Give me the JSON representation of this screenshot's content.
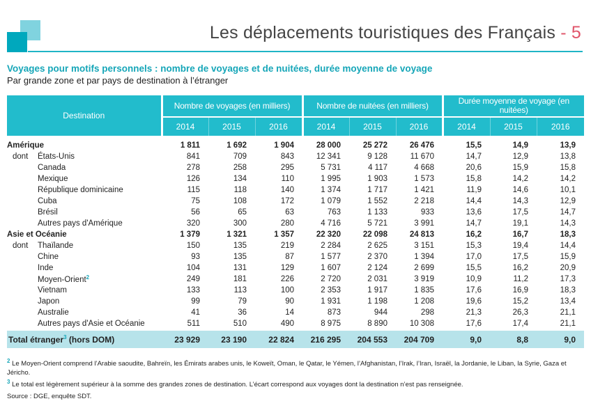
{
  "header": {
    "title": "Les déplacements touristiques des Français",
    "page_sep": "-",
    "page": "5"
  },
  "subtitle": "Voyages pour motifs personnels : nombre de voyages et de nuitées, durée moyenne de voyage",
  "subsubtitle": "Par grande zone et par pays de destination à l’étranger",
  "colors": {
    "accent": "#22bccc",
    "title_accent": "#e0546a",
    "total_bg": "#b7e3ea"
  },
  "table": {
    "dest_header": "Destination",
    "groups": [
      "Nombre de voyages (en milliers)",
      "Nombre de nuitées (en milliers)",
      "Durée moyenne de voyage (en nuitées)"
    ],
    "years": [
      "2014",
      "2015",
      "2016",
      "2014",
      "2015",
      "2016",
      "2014",
      "2015",
      "2016"
    ],
    "dont_label": "dont",
    "rows": [
      {
        "name": "Amérique",
        "zone": true,
        "v": [
          "1 811",
          "1 692",
          "1 904",
          "28 000",
          "25 272",
          "26 476",
          "15,5",
          "14,9",
          "13,9"
        ]
      },
      {
        "name": "États-Unis",
        "dont": true,
        "v": [
          "841",
          "709",
          "843",
          "12 341",
          "9 128",
          "11 670",
          "14,7",
          "12,9",
          "13,8"
        ]
      },
      {
        "name": "Canada",
        "v": [
          "278",
          "258",
          "295",
          "5 731",
          "4 117",
          "4 668",
          "20,6",
          "15,9",
          "15,8"
        ]
      },
      {
        "name": "Mexique",
        "v": [
          "126",
          "134",
          "110",
          "1 995",
          "1 903",
          "1 573",
          "15,8",
          "14,2",
          "14,2"
        ]
      },
      {
        "name": "République dominicaine",
        "v": [
          "115",
          "118",
          "140",
          "1 374",
          "1 717",
          "1 421",
          "11,9",
          "14,6",
          "10,1"
        ]
      },
      {
        "name": "Cuba",
        "v": [
          "75",
          "108",
          "172",
          "1 079",
          "1 552",
          "2 218",
          "14,4",
          "14,3",
          "12,9"
        ]
      },
      {
        "name": "Brésil",
        "v": [
          "56",
          "65",
          "63",
          "763",
          "1 133",
          "933",
          "13,6",
          "17,5",
          "14,7"
        ]
      },
      {
        "name": "Autres pays d'Amérique",
        "v": [
          "320",
          "300",
          "280",
          "4 716",
          "5 721",
          "3 991",
          "14,7",
          "19,1",
          "14,3"
        ]
      },
      {
        "name": "Asie et Océanie",
        "zone": true,
        "v": [
          "1 379",
          "1 321",
          "1 357",
          "22 320",
          "22 098",
          "24 813",
          "16,2",
          "16,7",
          "18,3"
        ]
      },
      {
        "name": "Thaïlande",
        "dont": true,
        "v": [
          "150",
          "135",
          "219",
          "2 284",
          "2 625",
          "3 151",
          "15,3",
          "19,4",
          "14,4"
        ]
      },
      {
        "name": "Chine",
        "v": [
          "93",
          "135",
          "87",
          "1 577",
          "2 370",
          "1 394",
          "17,0",
          "17,5",
          "15,9"
        ]
      },
      {
        "name": "Inde",
        "v": [
          "104",
          "131",
          "129",
          "1 607",
          "2 124",
          "2 699",
          "15,5",
          "16,2",
          "20,9"
        ]
      },
      {
        "name": "Moyen-Orient",
        "sup": "2",
        "v": [
          "249",
          "181",
          "226",
          "2 720",
          "2 031",
          "3 919",
          "10,9",
          "11,2",
          "17,3"
        ]
      },
      {
        "name": "Vietnam",
        "v": [
          "133",
          "113",
          "100",
          "2 353",
          "1 917",
          "1 835",
          "17,6",
          "16,9",
          "18,3"
        ]
      },
      {
        "name": "Japon",
        "v": [
          "99",
          "79",
          "90",
          "1 931",
          "1 198",
          "1 208",
          "19,6",
          "15,2",
          "13,4"
        ]
      },
      {
        "name": "Australie",
        "v": [
          "41",
          "36",
          "14",
          "873",
          "944",
          "298",
          "21,3",
          "26,3",
          "21,1"
        ]
      },
      {
        "name": "Autres pays d'Asie et Océanie",
        "v": [
          "511",
          "510",
          "490",
          "8 975",
          "8 890",
          "10 308",
          "17,6",
          "17,4",
          "21,1"
        ]
      }
    ],
    "total": {
      "name": "Total étranger",
      "sup": "3",
      "suffix": " (hors DOM)",
      "v": [
        "23 929",
        "23 190",
        "22 824",
        "216 295",
        "204 553",
        "204 709",
        "9,0",
        "8,8",
        "9,0"
      ]
    }
  },
  "footnotes": [
    {
      "mark": "2",
      "text": " Le Moyen-Orient comprend l’Arabie saoudite, Bahreïn, les Émirats arabes unis, le Koweït, Oman, le Qatar, le Yémen, l’Afghanistan, l’Irak, l’Iran, Israël, la Jordanie, le Liban, la Syrie, Gaza et Jéricho."
    },
    {
      "mark": "3",
      "text": " Le total est légèrement supérieur à la somme des grandes zones de destination. L’écart correspond aux voyages dont la destination n’est pas renseignée."
    },
    {
      "mark": "",
      "text": "Source : DGE, enquête SDT."
    }
  ]
}
